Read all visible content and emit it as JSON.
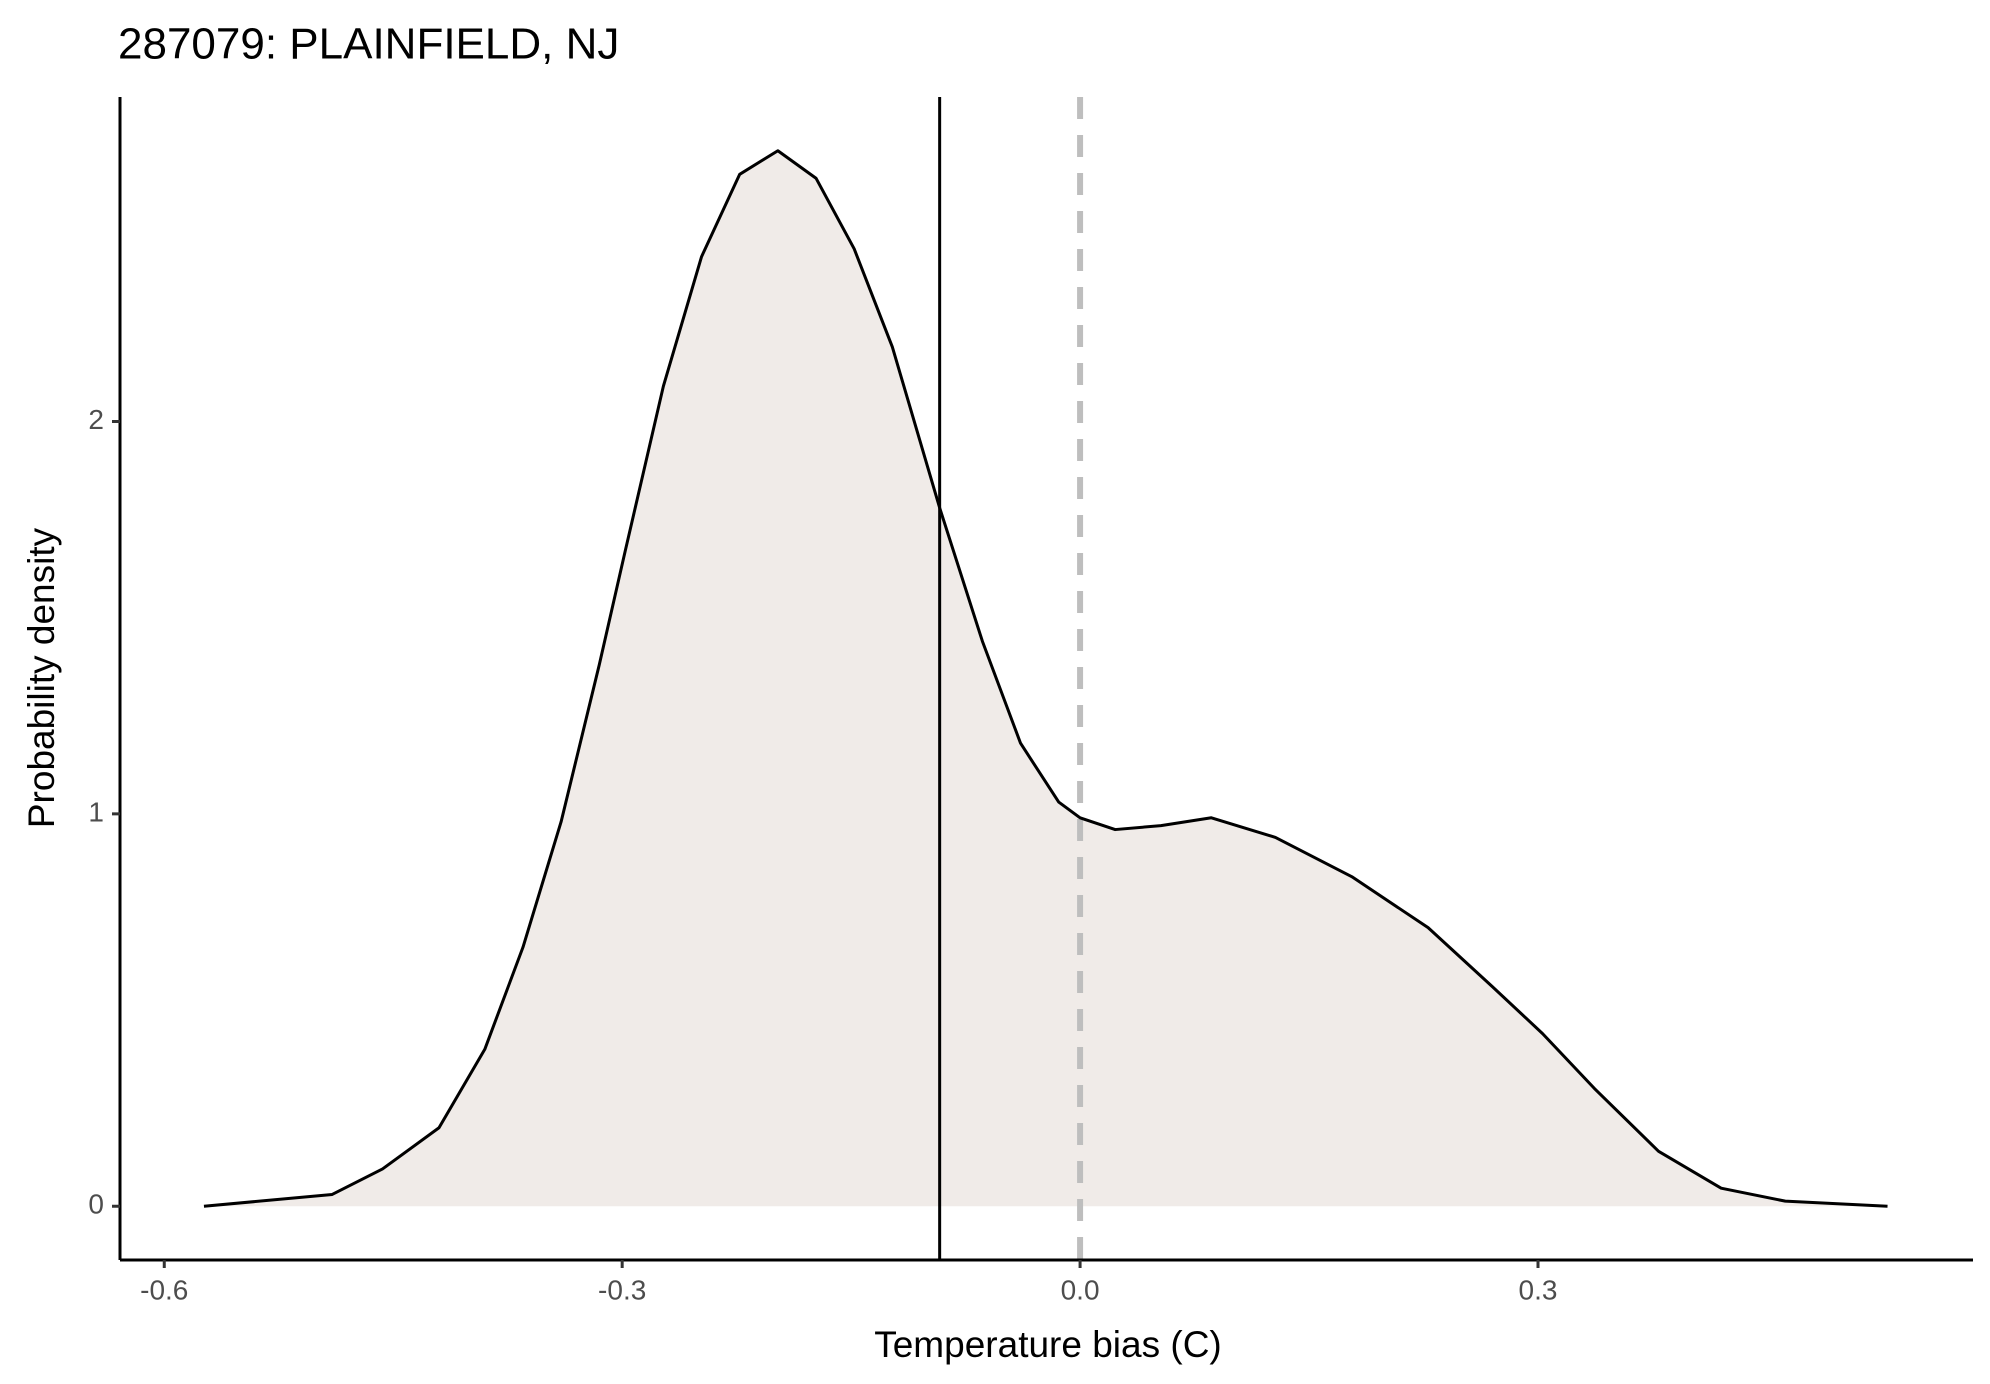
{
  "chart_data": {
    "type": "density",
    "title": "287079: PLAINFIELD, NJ",
    "xlabel": "Temperature bias (C)",
    "ylabel": "Probability density",
    "x": [
      -0.574,
      -0.49,
      -0.457,
      -0.42,
      -0.39,
      -0.365,
      -0.34,
      -0.315,
      -0.298,
      -0.273,
      -0.248,
      -0.223,
      -0.198,
      -0.173,
      -0.148,
      -0.123,
      -0.092,
      -0.064,
      -0.039,
      -0.014,
      0,
      0.023,
      0.053,
      0.086,
      0.128,
      0.178,
      0.228,
      0.27,
      0.303,
      0.337,
      0.379,
      0.42,
      0.462,
      0.529
    ],
    "values": [
      0,
      0.03,
      0.095,
      0.2,
      0.4,
      0.66,
      0.98,
      1.38,
      1.67,
      2.09,
      2.42,
      2.63,
      2.69,
      2.62,
      2.44,
      2.19,
      1.78,
      1.44,
      1.18,
      1.03,
      0.99,
      0.96,
      0.97,
      0.99,
      0.94,
      0.84,
      0.71,
      0.56,
      0.44,
      0.3,
      0.14,
      0.046,
      0.013,
      0
    ],
    "color": "#000000",
    "fill": "#f0ebe8",
    "reference_lines": [
      {
        "x": -0.092,
        "color": "#000000",
        "style": "solid"
      },
      {
        "x": 0,
        "color": "#bebebe",
        "style": "dashed"
      }
    ],
    "xlim": [
      -0.629,
      0.585
    ],
    "ylim": [
      -0.137,
      2.827
    ],
    "xticks": [
      -0.6,
      -0.3,
      {
        "value": 0,
        "label": "0.0"
      },
      0.3
    ],
    "yticks": [
      0,
      1,
      2
    ],
    "grid": false
  }
}
